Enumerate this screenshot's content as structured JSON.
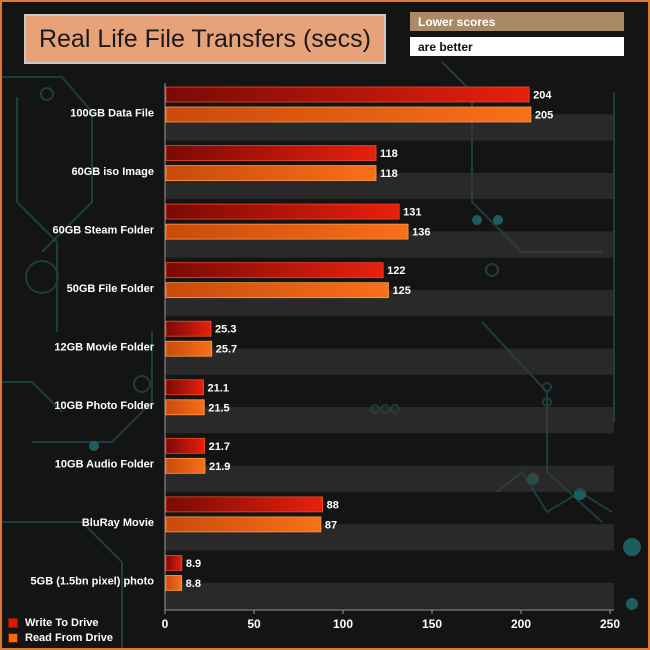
{
  "header": {
    "title": "Real Life File Transfers (secs)",
    "note_line1": "Lower scores",
    "note_line2": "are better"
  },
  "legend": {
    "write_label": "Write To  Drive",
    "read_label": "Read From  Drive"
  },
  "colors": {
    "write": "#d81a0a",
    "write_dark": "#7a0a05",
    "read": "#f56a10",
    "read_dark": "#c24008",
    "accent_border": "#e0782a",
    "title_bg": "#e8a27a",
    "note_bg": "#a98a64",
    "circuit": "#1f4a4a"
  },
  "chart_data": {
    "type": "bar",
    "orientation": "horizontal",
    "title": "Real Life File Transfers (secs)",
    "categories": [
      "100GB Data File",
      "60GB iso Image",
      "60GB Steam Folder",
      "50GB File Folder",
      "12GB Movie Folder",
      "10GB Photo Folder",
      "10GB Audio Folder",
      "BluRay Movie",
      "5GB (1.5bn pixel) photo"
    ],
    "series": [
      {
        "name": "Write To  Drive",
        "values": [
          204,
          118,
          131,
          122,
          25.3,
          21.1,
          21.7,
          88,
          8.9
        ]
      },
      {
        "name": "Read From  Drive",
        "values": [
          205,
          118,
          136,
          125,
          25.7,
          21.5,
          21.9,
          87,
          8.8
        ]
      }
    ],
    "xlim": [
      0,
      250
    ],
    "xticks": [
      0,
      50,
      100,
      150,
      200,
      250
    ],
    "xlabel": "",
    "ylabel": "",
    "legend_position": "bottom-left"
  }
}
